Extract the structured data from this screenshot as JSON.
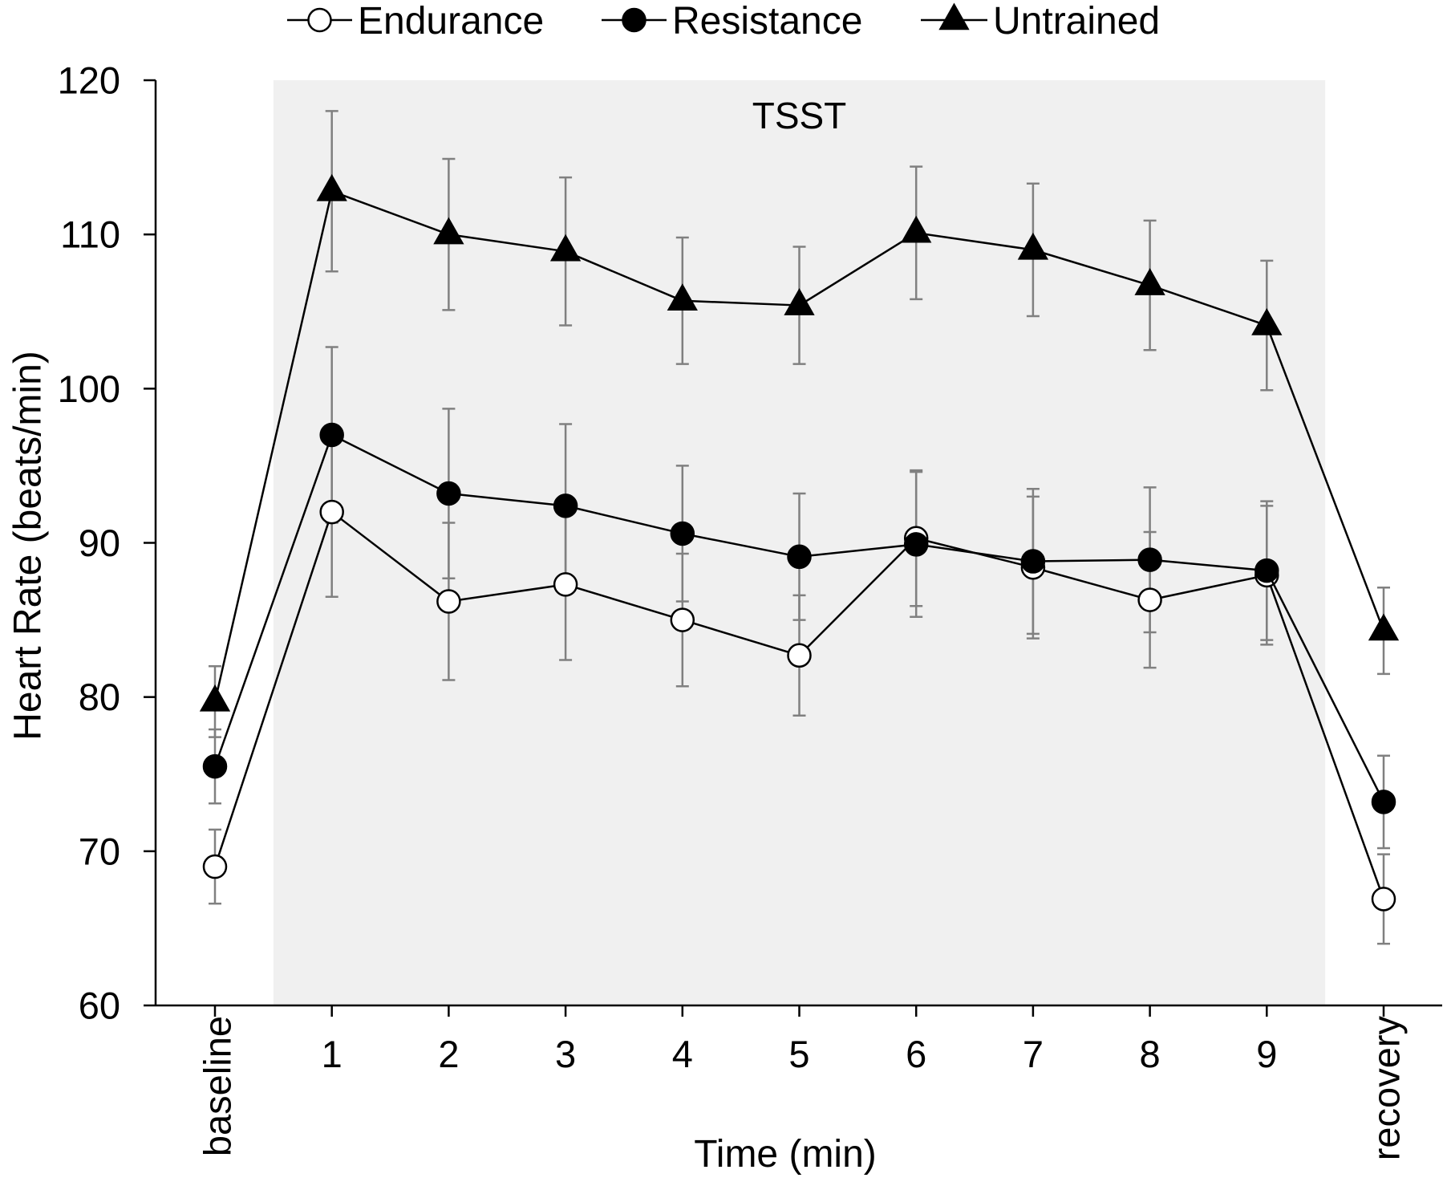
{
  "chart_data": {
    "type": "line",
    "title": "",
    "xlabel": "Time (min)",
    "ylabel": "Heart Rate (beats/min)",
    "categories": [
      "baseline",
      "1",
      "2",
      "3",
      "4",
      "5",
      "6",
      "7",
      "8",
      "9",
      "recovery"
    ],
    "ylim": [
      60,
      120
    ],
    "yticks": [
      60,
      70,
      80,
      90,
      100,
      110,
      120
    ],
    "legend": "top",
    "grid": false,
    "annotation": {
      "text": "TSST",
      "x_range": [
        0.5,
        9.5
      ]
    },
    "series": [
      {
        "name": "Endurance",
        "marker": "open-circle",
        "fill": "#ffffff",
        "values": [
          69.0,
          92.0,
          86.2,
          87.3,
          85.0,
          82.7,
          90.3,
          88.4,
          86.3,
          87.9,
          66.9
        ],
        "errors": [
          2.4,
          5.5,
          5.1,
          4.9,
          4.3,
          3.9,
          4.4,
          4.6,
          4.4,
          4.5,
          2.9
        ]
      },
      {
        "name": "Resistance",
        "marker": "filled-circle",
        "fill": "#000000",
        "values": [
          75.5,
          97.0,
          93.2,
          92.4,
          90.6,
          89.1,
          89.9,
          88.8,
          88.9,
          88.2,
          73.2
        ],
        "errors": [
          2.4,
          5.7,
          5.5,
          5.3,
          4.4,
          4.1,
          4.7,
          4.7,
          4.7,
          4.5,
          3.0
        ]
      },
      {
        "name": "Untrained",
        "marker": "filled-triangle",
        "fill": "#000000",
        "values": [
          79.7,
          112.8,
          110.0,
          108.9,
          105.7,
          105.4,
          110.1,
          109.0,
          106.7,
          104.1,
          84.3
        ],
        "errors": [
          2.3,
          5.2,
          4.9,
          4.8,
          4.1,
          3.8,
          4.3,
          4.3,
          4.2,
          4.2,
          2.8
        ]
      }
    ]
  },
  "colors": {
    "shaded_region": "#f0f0f0",
    "error_bars": "#808080",
    "lines": "#000000",
    "axis": "#000000"
  }
}
